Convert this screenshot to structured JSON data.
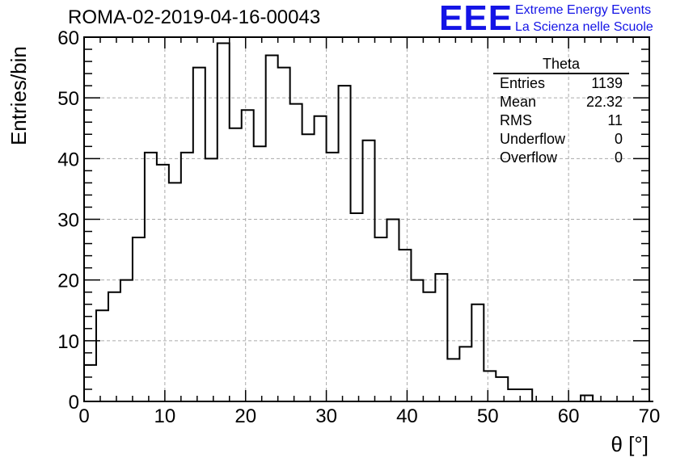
{
  "header": {
    "title": "ROMA-02-2019-04-16-00043",
    "logo_text": "EEE",
    "logo_line1": "Extreme Energy Events",
    "logo_line2": "La Scienza nelle Scuole",
    "logo_color": "#1414e6"
  },
  "stats": {
    "title": "Theta",
    "rows": [
      {
        "label": "Entries",
        "value": "1139"
      },
      {
        "label": "Mean",
        "value": "22.32"
      },
      {
        "label": "RMS",
        "value": "11"
      },
      {
        "label": "Underflow",
        "value": "0"
      },
      {
        "label": "Overflow",
        "value": "0"
      }
    ]
  },
  "chart_data": {
    "type": "bar",
    "histogram": true,
    "title": "ROMA-02-2019-04-16-00043",
    "xlabel": "θ [°]",
    "ylabel": "Entries/bin",
    "xlim": [
      0,
      70
    ],
    "ylim": [
      0,
      60
    ],
    "bin_width": 1.5,
    "bin_start": 0,
    "xticks": [
      0,
      10,
      20,
      30,
      40,
      50,
      60,
      70
    ],
    "yticks": [
      0,
      10,
      20,
      30,
      40,
      50,
      60
    ],
    "grid": true,
    "values": [
      6,
      15,
      18,
      20,
      27,
      41,
      39,
      36,
      41,
      55,
      40,
      59,
      45,
      48,
      42,
      57,
      55,
      49,
      44,
      47,
      41,
      52,
      31,
      43,
      27,
      30,
      25,
      20,
      18,
      21,
      7,
      9,
      16,
      5,
      4,
      2,
      2,
      0,
      0,
      0,
      0,
      1,
      0,
      0,
      0,
      0,
      0
    ]
  }
}
